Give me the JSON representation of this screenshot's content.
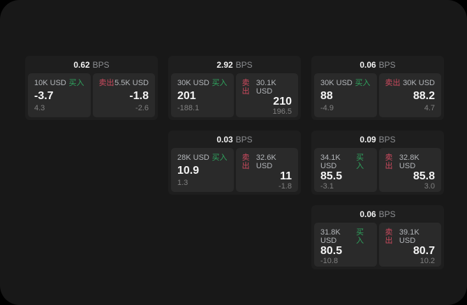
{
  "labels": {
    "bps_unit": "BPS",
    "buy": "买入",
    "sell": "卖出"
  },
  "colors": {
    "background": "#000000",
    "surface": "#181818",
    "card": "#1e1e1e",
    "panel": "#2a2a2a",
    "buy": "#2fa45e",
    "sell": "#cb4a5e"
  },
  "cards": [
    {
      "bps": "0.62",
      "buy": {
        "volume": "10K USD",
        "price": "-3.7",
        "delta": "4.3"
      },
      "sell": {
        "volume": "5.5K USD",
        "price": "-1.8",
        "delta": "-2.6"
      }
    },
    {
      "bps": "2.92",
      "buy": {
        "volume": "30K USD",
        "price": "201",
        "delta": "-188.1"
      },
      "sell": {
        "volume": "30.1K USD",
        "price": "210",
        "delta": "196.5"
      }
    },
    {
      "bps": "0.06",
      "buy": {
        "volume": "30K USD",
        "price": "88",
        "delta": "-4.9"
      },
      "sell": {
        "volume": "30K USD",
        "price": "88.2",
        "delta": "4.7"
      }
    },
    {
      "bps": "0.03",
      "buy": {
        "volume": "28K USD",
        "price": "10.9",
        "delta": "1.3"
      },
      "sell": {
        "volume": "32.6K USD",
        "price": "11",
        "delta": "-1.8"
      }
    },
    {
      "bps": "0.09",
      "buy": {
        "volume": "34.1K USD",
        "price": "85.5",
        "delta": "-3.1"
      },
      "sell": {
        "volume": "32.8K USD",
        "price": "85.8",
        "delta": "3.0"
      }
    },
    {
      "bps": "0.06",
      "buy": {
        "volume": "31.8K USD",
        "price": "80.5",
        "delta": "-10.8"
      },
      "sell": {
        "volume": "39.1K USD",
        "price": "80.7",
        "delta": "10.2"
      }
    }
  ]
}
